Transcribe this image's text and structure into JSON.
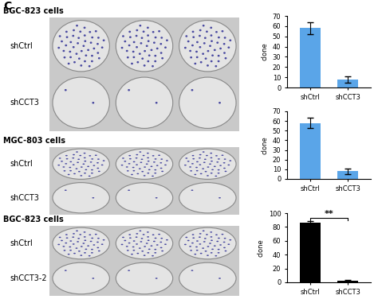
{
  "panel_label": "C",
  "plate_groups": [
    {
      "title": "BGC-823 cells",
      "rows": [
        "shCtrl",
        "shCCT3"
      ]
    },
    {
      "title": "MGC-803 cells",
      "rows": [
        "shCtrl",
        "shCCT3"
      ]
    },
    {
      "title": "BGC-823 cells",
      "rows": [
        "shCtrl",
        "shCCT3-2"
      ]
    }
  ],
  "chart_data": [
    {
      "type": "bar",
      "categories": [
        "shCtrl",
        "shCCT3"
      ],
      "values": [
        58,
        8
      ],
      "errors": [
        6,
        3
      ],
      "color": "#5aa5e8",
      "y_label": "clone",
      "ylim": [
        0,
        70
      ],
      "yticks": [
        0,
        10,
        20,
        30,
        40,
        50,
        60,
        70
      ]
    },
    {
      "type": "bar",
      "categories": [
        "shCtrl",
        "shCCT3"
      ],
      "values": [
        58,
        8
      ],
      "errors": [
        5,
        3
      ],
      "color": "#5aa5e8",
      "y_label": "clone",
      "ylim": [
        0,
        70
      ],
      "yticks": [
        0,
        10,
        20,
        30,
        40,
        50,
        60,
        70
      ]
    },
    {
      "type": "bar",
      "categories": [
        "shCtrl",
        "shCCT3"
      ],
      "values": [
        86,
        2
      ],
      "errors": [
        3,
        1
      ],
      "color": "#000000",
      "y_label": "clone",
      "ylim": [
        0,
        100
      ],
      "yticks": [
        0,
        20,
        40,
        60,
        80,
        100
      ],
      "annotations": [
        {
          "text": "**",
          "between": [
            "shCtrl",
            "shCCT3"
          ]
        }
      ]
    }
  ]
}
